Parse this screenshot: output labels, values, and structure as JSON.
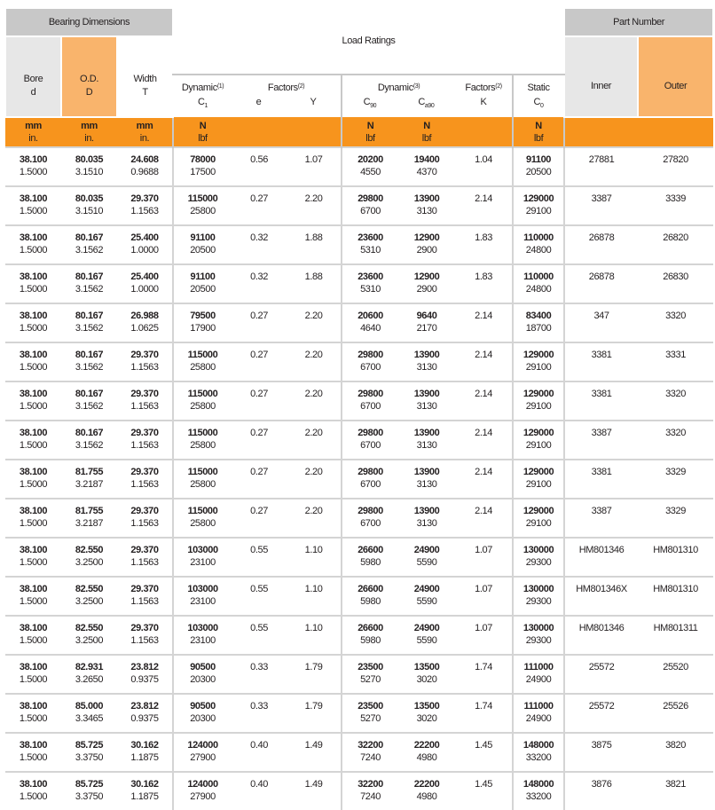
{
  "header": {
    "bearing_dimensions": "Bearing Dimensions",
    "load_ratings": "Load Ratings",
    "part_number": "Part Number",
    "bore": [
      "Bore",
      "d"
    ],
    "od": [
      "O.D.",
      "D"
    ],
    "width": [
      "Width",
      "T"
    ],
    "dynamic1": {
      "label": "Dynamic",
      "sup": "(1)",
      "sym": "C",
      "sub": "1"
    },
    "factors1": {
      "label": "Factors",
      "sup": "(2)",
      "e": "e",
      "y": "Y"
    },
    "dynamic3": {
      "label": "Dynamic",
      "sup": "(3)",
      "c90": "C",
      "c90_sub": "90",
      "ca90": "C",
      "ca90_sub": "a90"
    },
    "factors2": {
      "label": "Factors",
      "sup": "(2)",
      "k": "K"
    },
    "static": {
      "label": "Static",
      "sym": "C",
      "sub": "0"
    },
    "inner": "Inner",
    "outer": "Outer"
  },
  "units": {
    "mm": "mm",
    "in": "in.",
    "n": "N",
    "lbf": "lbf"
  },
  "colors": {
    "orange": "#f7941d",
    "light_orange": "#f9b46c",
    "gray": "#c8c8c8",
    "light_gray": "#e7e7e7"
  },
  "rows": [
    [
      "38.100",
      "1.5000",
      "80.035",
      "3.1510",
      "24.608",
      "0.9688",
      "78000",
      "17500",
      "0.56",
      "1.07",
      "20200",
      "4550",
      "19400",
      "4370",
      "1.04",
      "91100",
      "20500",
      "27881",
      "27820"
    ],
    [
      "38.100",
      "1.5000",
      "80.035",
      "3.1510",
      "29.370",
      "1.1563",
      "115000",
      "25800",
      "0.27",
      "2.20",
      "29800",
      "6700",
      "13900",
      "3130",
      "2.14",
      "129000",
      "29100",
      "3387",
      "3339"
    ],
    [
      "38.100",
      "1.5000",
      "80.167",
      "3.1562",
      "25.400",
      "1.0000",
      "91100",
      "20500",
      "0.32",
      "1.88",
      "23600",
      "5310",
      "12900",
      "2900",
      "1.83",
      "110000",
      "24800",
      "26878",
      "26820"
    ],
    [
      "38.100",
      "1.5000",
      "80.167",
      "3.1562",
      "25.400",
      "1.0000",
      "91100",
      "20500",
      "0.32",
      "1.88",
      "23600",
      "5310",
      "12900",
      "2900",
      "1.83",
      "110000",
      "24800",
      "26878",
      "26830"
    ],
    [
      "38.100",
      "1.5000",
      "80.167",
      "3.1562",
      "26.988",
      "1.0625",
      "79500",
      "17900",
      "0.27",
      "2.20",
      "20600",
      "4640",
      "9640",
      "2170",
      "2.14",
      "83400",
      "18700",
      "347",
      "3320"
    ],
    [
      "38.100",
      "1.5000",
      "80.167",
      "3.1562",
      "29.370",
      "1.1563",
      "115000",
      "25800",
      "0.27",
      "2.20",
      "29800",
      "6700",
      "13900",
      "3130",
      "2.14",
      "129000",
      "29100",
      "3381",
      "3331"
    ],
    [
      "38.100",
      "1.5000",
      "80.167",
      "3.1562",
      "29.370",
      "1.1563",
      "115000",
      "25800",
      "0.27",
      "2.20",
      "29800",
      "6700",
      "13900",
      "3130",
      "2.14",
      "129000",
      "29100",
      "3381",
      "3320"
    ],
    [
      "38.100",
      "1.5000",
      "80.167",
      "3.1562",
      "29.370",
      "1.1563",
      "115000",
      "25800",
      "0.27",
      "2.20",
      "29800",
      "6700",
      "13900",
      "3130",
      "2.14",
      "129000",
      "29100",
      "3387",
      "3320"
    ],
    [
      "38.100",
      "1.5000",
      "81.755",
      "3.2187",
      "29.370",
      "1.1563",
      "115000",
      "25800",
      "0.27",
      "2.20",
      "29800",
      "6700",
      "13900",
      "3130",
      "2.14",
      "129000",
      "29100",
      "3381",
      "3329"
    ],
    [
      "38.100",
      "1.5000",
      "81.755",
      "3.2187",
      "29.370",
      "1.1563",
      "115000",
      "25800",
      "0.27",
      "2.20",
      "29800",
      "6700",
      "13900",
      "3130",
      "2.14",
      "129000",
      "29100",
      "3387",
      "3329"
    ],
    [
      "38.100",
      "1.5000",
      "82.550",
      "3.2500",
      "29.370",
      "1.1563",
      "103000",
      "23100",
      "0.55",
      "1.10",
      "26600",
      "5980",
      "24900",
      "5590",
      "1.07",
      "130000",
      "29300",
      "HM801346",
      "HM801310"
    ],
    [
      "38.100",
      "1.5000",
      "82.550",
      "3.2500",
      "29.370",
      "1.1563",
      "103000",
      "23100",
      "0.55",
      "1.10",
      "26600",
      "5980",
      "24900",
      "5590",
      "1.07",
      "130000",
      "29300",
      "HM801346X",
      "HM801310"
    ],
    [
      "38.100",
      "1.5000",
      "82.550",
      "3.2500",
      "29.370",
      "1.1563",
      "103000",
      "23100",
      "0.55",
      "1.10",
      "26600",
      "5980",
      "24900",
      "5590",
      "1.07",
      "130000",
      "29300",
      "HM801346",
      "HM801311"
    ],
    [
      "38.100",
      "1.5000",
      "82.931",
      "3.2650",
      "23.812",
      "0.9375",
      "90500",
      "20300",
      "0.33",
      "1.79",
      "23500",
      "5270",
      "13500",
      "3020",
      "1.74",
      "111000",
      "24900",
      "25572",
      "25520"
    ],
    [
      "38.100",
      "1.5000",
      "85.000",
      "3.3465",
      "23.812",
      "0.9375",
      "90500",
      "20300",
      "0.33",
      "1.79",
      "23500",
      "5270",
      "13500",
      "3020",
      "1.74",
      "111000",
      "24900",
      "25572",
      "25526"
    ],
    [
      "38.100",
      "1.5000",
      "85.725",
      "3.3750",
      "30.162",
      "1.1875",
      "124000",
      "27900",
      "0.40",
      "1.49",
      "32200",
      "7240",
      "22200",
      "4980",
      "1.45",
      "148000",
      "33200",
      "3875",
      "3820"
    ],
    [
      "38.100",
      "1.5000",
      "85.725",
      "3.3750",
      "30.162",
      "1.1875",
      "124000",
      "27900",
      "0.40",
      "1.49",
      "32200",
      "7240",
      "22200",
      "4980",
      "1.45",
      "148000",
      "33200",
      "3876",
      "3821"
    ]
  ]
}
